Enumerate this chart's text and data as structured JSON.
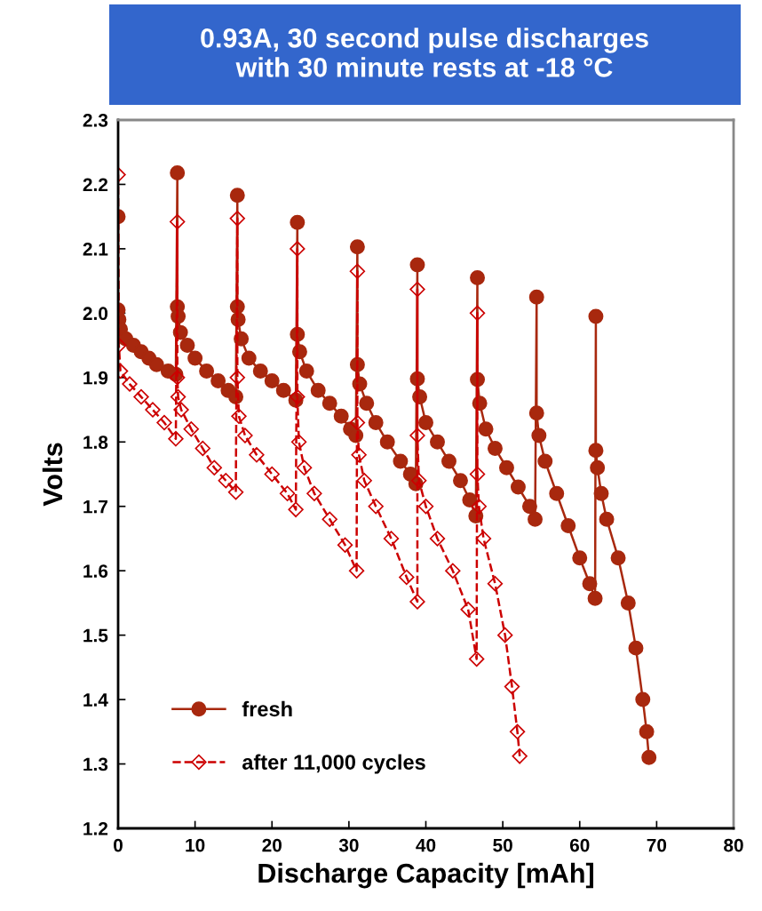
{
  "chart_data": {
    "type": "line",
    "title": "0.93A, 30 second pulse discharges\nwith 30 minute rests at -18 °C",
    "xlabel": "Discharge Capacity [mAh]",
    "ylabel": "Volts",
    "xlim": [
      0,
      80
    ],
    "ylim": [
      1.2,
      2.3
    ],
    "xticks": [
      0,
      10,
      20,
      30,
      40,
      50,
      60,
      70,
      80
    ],
    "yticks": [
      1.2,
      1.3,
      1.4,
      1.5,
      1.6,
      1.7,
      1.8,
      1.9,
      {
        "value": 2.0,
        "label": "2.0"
      },
      2.1,
      2.2,
      2.3
    ],
    "grid": false,
    "legend": "bottom left",
    "series": [
      {
        "name": "fresh",
        "color": "#a8280e",
        "marker": "circle",
        "line_style": "solid",
        "x": [
          0,
          0,
          0.1,
          0.3,
          1,
          2,
          3,
          4,
          5,
          6.5,
          7.5,
          7.7,
          7.7,
          7.8,
          8.1,
          9,
          10,
          11.5,
          13,
          14.3,
          15.3,
          15.5,
          15.5,
          15.6,
          16,
          17,
          18.5,
          20,
          21.5,
          23.1,
          23.3,
          23.3,
          23.6,
          24.5,
          26,
          27.5,
          29,
          30.2,
          30.9,
          31.1,
          31.1,
          31.4,
          32.3,
          33.5,
          35,
          36.7,
          38,
          38.7,
          38.9,
          38.9,
          39.2,
          40,
          41.5,
          43,
          44.5,
          45.7,
          46.5,
          46.7,
          46.7,
          47,
          47.8,
          49,
          50.5,
          52,
          53.5,
          54.2,
          54.4,
          54.4,
          54.7,
          55.5,
          57,
          58.5,
          60,
          61.3,
          62.0,
          62.1,
          62.1,
          62.3,
          62.8,
          63.5,
          65,
          66.3,
          67.3,
          68.2,
          68.7,
          69.0
        ],
        "values": [
          2.15,
          2.005,
          1.99,
          1.975,
          1.96,
          1.95,
          1.94,
          1.93,
          1.92,
          1.91,
          1.905,
          2.218,
          2.01,
          1.995,
          1.97,
          1.95,
          1.93,
          1.91,
          1.895,
          1.88,
          1.87,
          2.183,
          2.01,
          1.99,
          1.96,
          1.93,
          1.91,
          1.895,
          1.88,
          1.865,
          2.141,
          1.967,
          1.94,
          1.91,
          1.88,
          1.86,
          1.84,
          1.82,
          1.81,
          2.103,
          1.92,
          1.89,
          1.86,
          1.83,
          1.8,
          1.77,
          1.75,
          1.735,
          2.075,
          1.898,
          1.87,
          1.83,
          1.8,
          1.77,
          1.74,
          1.71,
          1.685,
          2.055,
          1.897,
          1.86,
          1.82,
          1.79,
          1.76,
          1.73,
          1.7,
          1.68,
          2.025,
          1.845,
          1.81,
          1.77,
          1.72,
          1.67,
          1.62,
          1.58,
          1.557,
          1.995,
          1.787,
          1.76,
          1.72,
          1.68,
          1.62,
          1.55,
          1.48,
          1.4,
          1.35,
          1.31
        ]
      },
      {
        "name": "after 11,000 cycles",
        "color": "#cc0000",
        "marker": "diamond",
        "line_style": "dashed",
        "x": [
          0,
          0.1,
          0.3,
          1.5,
          3,
          4.5,
          6,
          7.5,
          7.7,
          7.7,
          7.8,
          8.2,
          9.5,
          11,
          12.5,
          14,
          15.3,
          15.5,
          15.5,
          15.7,
          16.5,
          18,
          20,
          22,
          23.1,
          23.3,
          23.3,
          23.5,
          24.2,
          25.5,
          27.5,
          29.5,
          31.0,
          31.1,
          31.1,
          31.3,
          32,
          33.5,
          35.5,
          37.5,
          38.9,
          38.9,
          38.9,
          39.1,
          40,
          41.5,
          43.5,
          45.5,
          46.6,
          46.7,
          46.7,
          46.9,
          47.5,
          49,
          50.3,
          51.2,
          51.9,
          52.2
        ],
        "values": [
          2.215,
          1.95,
          1.91,
          1.89,
          1.87,
          1.85,
          1.83,
          1.805,
          2.142,
          1.9,
          1.87,
          1.85,
          1.82,
          1.79,
          1.76,
          1.74,
          1.722,
          2.147,
          1.9,
          1.84,
          1.81,
          1.78,
          1.75,
          1.72,
          1.695,
          2.1,
          1.87,
          1.8,
          1.76,
          1.72,
          1.68,
          1.64,
          1.6,
          2.065,
          1.83,
          1.78,
          1.74,
          1.7,
          1.65,
          1.59,
          1.552,
          2.037,
          1.81,
          1.74,
          1.7,
          1.65,
          1.6,
          1.54,
          1.463,
          2.0,
          1.75,
          1.7,
          1.65,
          1.58,
          1.5,
          1.42,
          1.35,
          1.312
        ]
      }
    ]
  }
}
